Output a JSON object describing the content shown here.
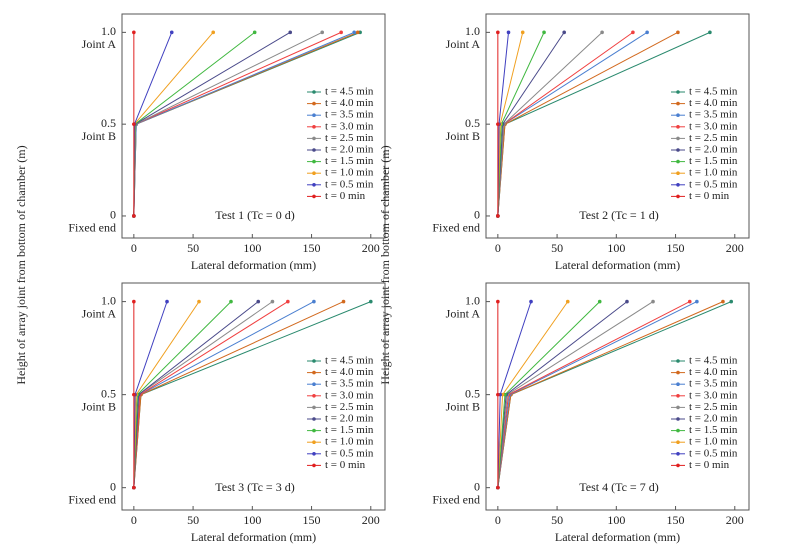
{
  "chart_data": [
    {
      "type": "line",
      "xlabel": "Lateral deformation (mm)",
      "ylabel": "Height of array joint from bottom of chamber (m)",
      "annotation": "Test 1 (Tc = 0 d)",
      "xlim": [
        -10,
        212
      ],
      "xticks": [
        0,
        50,
        100,
        150,
        200
      ],
      "ylim": [
        -0.12,
        1.1
      ],
      "yticks": [
        0,
        0.5,
        {
          "value": 1,
          "label": "1.0"
        }
      ],
      "joint_labels": [
        "Fixed end",
        "Joint B",
        "Joint A"
      ],
      "y": [
        0,
        0.5,
        1
      ],
      "series": [
        {
          "name": "t = 4.5 min",
          "color": "#2a8a6e",
          "x": [
            0,
            2,
            191
          ]
        },
        {
          "name": "t = 4.0 min",
          "color": "#d2691e",
          "x": [
            0,
            2,
            189
          ]
        },
        {
          "name": "t = 3.5 min",
          "color": "#4a7fd0",
          "x": [
            0,
            2,
            186
          ]
        },
        {
          "name": "t = 3.0 min",
          "color": "#f04040",
          "x": [
            0,
            1.5,
            175
          ]
        },
        {
          "name": "t = 2.5 min",
          "color": "#8a8a8a",
          "x": [
            0,
            1.5,
            159
          ]
        },
        {
          "name": "t = 2.0 min",
          "color": "#4a4a8a",
          "x": [
            0,
            1,
            132
          ]
        },
        {
          "name": "t = 1.5 min",
          "color": "#40b840",
          "x": [
            0,
            1,
            102
          ]
        },
        {
          "name": "t = 1.0 min",
          "color": "#f0a020",
          "x": [
            0,
            0.5,
            67
          ]
        },
        {
          "name": "t = 0.5 min",
          "color": "#4040c0",
          "x": [
            0,
            0.5,
            32
          ]
        },
        {
          "name": "t = 0 min",
          "color": "#e02020",
          "x": [
            0,
            0,
            0
          ]
        }
      ]
    },
    {
      "type": "line",
      "xlabel": "Lateral deformation (mm)",
      "ylabel": "Height of array joint from bottom of chamber (m)",
      "annotation": "Test 2 (Tc = 1 d)",
      "xlim": [
        -10,
        212
      ],
      "xticks": [
        0,
        50,
        100,
        150,
        200
      ],
      "ylim": [
        -0.12,
        1.1
      ],
      "yticks": [
        0,
        0.5,
        {
          "value": 1,
          "label": "1.0"
        }
      ],
      "joint_labels": [
        "Fixed end",
        "Joint B",
        "Joint A"
      ],
      "y": [
        0,
        0.5,
        1
      ],
      "series": [
        {
          "name": "t = 4.5 min",
          "color": "#2a8a6e",
          "x": [
            0,
            6,
            179
          ]
        },
        {
          "name": "t = 4.0 min",
          "color": "#d2691e",
          "x": [
            0,
            6,
            152
          ]
        },
        {
          "name": "t = 3.5 min",
          "color": "#4a7fd0",
          "x": [
            0,
            5,
            126
          ]
        },
        {
          "name": "t = 3.0 min",
          "color": "#f04040",
          "x": [
            0,
            5,
            114
          ]
        },
        {
          "name": "t = 2.5 min",
          "color": "#8a8a8a",
          "x": [
            0,
            5,
            88
          ]
        },
        {
          "name": "t = 2.0 min",
          "color": "#4a4a8a",
          "x": [
            0,
            4,
            56
          ]
        },
        {
          "name": "t = 1.5 min",
          "color": "#40b840",
          "x": [
            0,
            3,
            39
          ]
        },
        {
          "name": "t = 1.0 min",
          "color": "#f0a020",
          "x": [
            0,
            2,
            21
          ]
        },
        {
          "name": "t = 0.5 min",
          "color": "#4040c0",
          "x": [
            0,
            1,
            9
          ]
        },
        {
          "name": "t = 0 min",
          "color": "#e02020",
          "x": [
            0,
            0,
            0
          ]
        }
      ]
    },
    {
      "type": "line",
      "xlabel": "Lateral deformation (mm)",
      "annotation": "Test 3 (Tc = 3 d)",
      "xlim": [
        -10,
        212
      ],
      "xticks": [
        0,
        50,
        100,
        150,
        200
      ],
      "ylim": [
        -0.12,
        1.1
      ],
      "yticks": [
        0,
        0.5,
        {
          "value": 1,
          "label": "1.0"
        }
      ],
      "joint_labels": [
        "Fixed end",
        "Joint B",
        "Joint A"
      ],
      "y": [
        0,
        0.5,
        1
      ],
      "series": [
        {
          "name": "t = 4.5 min",
          "color": "#2a8a6e",
          "x": [
            0,
            6,
            200
          ]
        },
        {
          "name": "t = 4.0 min",
          "color": "#d2691e",
          "x": [
            0,
            6,
            177
          ]
        },
        {
          "name": "t = 3.5 min",
          "color": "#4a7fd0",
          "x": [
            0,
            5,
            152
          ]
        },
        {
          "name": "t = 3.0 min",
          "color": "#f04040",
          "x": [
            0,
            5,
            130
          ]
        },
        {
          "name": "t = 2.5 min",
          "color": "#8a8a8a",
          "x": [
            0,
            4,
            117
          ]
        },
        {
          "name": "t = 2.0 min",
          "color": "#4a4a8a",
          "x": [
            0,
            4,
            105
          ]
        },
        {
          "name": "t = 1.5 min",
          "color": "#40b840",
          "x": [
            0,
            3,
            82
          ]
        },
        {
          "name": "t = 1.0 min",
          "color": "#f0a020",
          "x": [
            0,
            2,
            55
          ]
        },
        {
          "name": "t = 0.5 min",
          "color": "#4040c0",
          "x": [
            0,
            1,
            28
          ]
        },
        {
          "name": "t = 0 min",
          "color": "#e02020",
          "x": [
            0,
            0,
            0
          ]
        }
      ]
    },
    {
      "type": "line",
      "xlabel": "Lateral deformation (mm)",
      "annotation": "Test 4 (Tc = 7 d)",
      "xlim": [
        -10,
        212
      ],
      "xticks": [
        0,
        50,
        100,
        150,
        200
      ],
      "ylim": [
        -0.12,
        1.1
      ],
      "yticks": [
        0,
        0.5,
        {
          "value": 1,
          "label": "1.0"
        }
      ],
      "joint_labels": [
        "Fixed end",
        "Joint B",
        "Joint A"
      ],
      "y": [
        0,
        0.5,
        1
      ],
      "series": [
        {
          "name": "t = 4.5 min",
          "color": "#2a8a6e",
          "x": [
            0,
            11,
            197
          ]
        },
        {
          "name": "t = 4.0 min",
          "color": "#d2691e",
          "x": [
            0,
            11,
            190
          ]
        },
        {
          "name": "t = 3.5 min",
          "color": "#4a7fd0",
          "x": [
            0,
            10,
            168
          ]
        },
        {
          "name": "t = 3.0 min",
          "color": "#f04040",
          "x": [
            0,
            9,
            162
          ]
        },
        {
          "name": "t = 2.5 min",
          "color": "#8a8a8a",
          "x": [
            0,
            8,
            131
          ]
        },
        {
          "name": "t = 2.0 min",
          "color": "#4a4a8a",
          "x": [
            0,
            7,
            109
          ]
        },
        {
          "name": "t = 1.5 min",
          "color": "#40b840",
          "x": [
            0,
            6,
            86
          ]
        },
        {
          "name": "t = 1.0 min",
          "color": "#f0a020",
          "x": [
            0,
            4,
            59
          ]
        },
        {
          "name": "t = 0.5 min",
          "color": "#4040c0",
          "x": [
            0,
            2,
            28
          ]
        },
        {
          "name": "t = 0 min",
          "color": "#e02020",
          "x": [
            0,
            0,
            0
          ]
        }
      ]
    }
  ]
}
